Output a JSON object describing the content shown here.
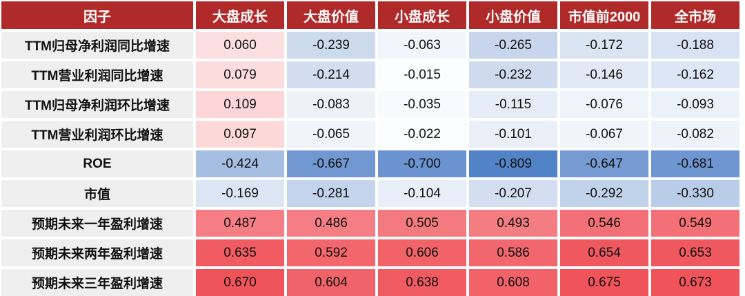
{
  "chart_data": {
    "type": "table",
    "corner_label": "因子",
    "columns": [
      "大盘成长",
      "大盘价值",
      "小盘成长",
      "小盘价值",
      "市值前2000",
      "全市场"
    ],
    "rows": [
      {
        "label": "TTM归母净利润同比增速",
        "values": [
          "0.060",
          "-0.239",
          "-0.063",
          "-0.265",
          "-0.172",
          "-0.188"
        ]
      },
      {
        "label": "TTM营业利润同比增速",
        "values": [
          "0.079",
          "-0.214",
          "-0.015",
          "-0.232",
          "-0.146",
          "-0.162"
        ]
      },
      {
        "label": "TTM归母净利润环比增速",
        "values": [
          "0.109",
          "-0.083",
          "-0.035",
          "-0.115",
          "-0.076",
          "-0.093"
        ]
      },
      {
        "label": "TTM营业利润环比增速",
        "values": [
          "0.097",
          "-0.065",
          "-0.022",
          "-0.101",
          "-0.067",
          "-0.082"
        ]
      },
      {
        "label": "ROE",
        "values": [
          "-0.424",
          "-0.667",
          "-0.700",
          "-0.809",
          "-0.647",
          "-0.681"
        ]
      },
      {
        "label": "市值",
        "values": [
          "-0.169",
          "-0.281",
          "-0.104",
          "-0.207",
          "-0.292",
          "-0.330"
        ]
      },
      {
        "label": "预期未来一年盈利增速",
        "values": [
          "0.487",
          "0.486",
          "0.505",
          "0.493",
          "0.546",
          "0.549"
        ]
      },
      {
        "label": "预期未来两年盈利增速",
        "values": [
          "0.635",
          "0.592",
          "0.606",
          "0.586",
          "0.654",
          "0.653"
        ]
      },
      {
        "label": "预期未来三年盈利增速",
        "values": [
          "0.670",
          "0.604",
          "0.638",
          "0.608",
          "0.675",
          "0.673"
        ]
      }
    ],
    "colors": {
      "header_bg": "#b12a2a",
      "header_text": "#ffffff",
      "label_bg": "#efefef",
      "positive": "#f0535a",
      "negative": "#4a7cc4",
      "neutral": "#ffffff"
    }
  }
}
